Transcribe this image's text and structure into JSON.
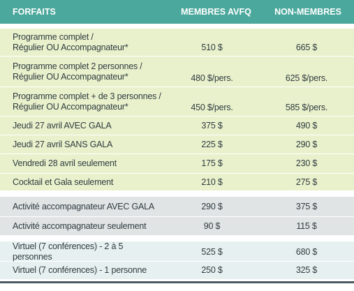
{
  "header": {
    "col_package": "FORFAITS",
    "col_members": "MEMBRES AVFQ",
    "col_nonmembers": "NON-MEMBRES"
  },
  "rows_main": [
    {
      "line1": "Programme complet /",
      "line2": "Régulier OU Accompagnateur*",
      "members": "510 $",
      "nonmembers": "665 $"
    },
    {
      "line1": "Programme complet 2 personnes /",
      "line2": "Régulier OU Accompagnateur*",
      "members": "480 $/pers.",
      "nonmembers": "625 $/pers."
    },
    {
      "line1": "Programme complet + de 3 personnes /",
      "line2": "Régulier OU Accompagnateur*",
      "members": "450 $/pers.",
      "nonmembers": "585 $/pers."
    },
    {
      "line1": "Jeudi 27 avril AVEC GALA",
      "members": "375 $",
      "nonmembers": "490 $"
    },
    {
      "line1": "Jeudi 27 avril SANS GALA",
      "members": "225 $",
      "nonmembers": "290 $"
    },
    {
      "line1": "Vendredi 28 avril seulement",
      "members": "175 $",
      "nonmembers": "230 $"
    },
    {
      "line1": "Cocktail et Gala seulement",
      "members": "210 $",
      "nonmembers": "275 $"
    }
  ],
  "rows_companion": [
    {
      "line1": "Activité accompagnateur AVEC GALA",
      "members": "290 $",
      "nonmembers": "375 $"
    },
    {
      "line1": "Activité accompagnateur seulement",
      "members": "90 $",
      "nonmembers": "115 $"
    }
  ],
  "rows_virtual": [
    {
      "line1": "Virtuel (7 conférences) - 2 à 5 personnes",
      "members": "525 $",
      "nonmembers": "680 $"
    },
    {
      "line1": "Virtuel (7 conférences) - 1 personne",
      "members": "250 $",
      "nonmembers": "325 $"
    }
  ],
  "colors": {
    "header": "#4ba89c",
    "main_band": "#e9f1cc",
    "companion_band": "#e1e4e5",
    "virtual_band": "#e6f0f1",
    "footer_rule": "#4a5a62"
  }
}
